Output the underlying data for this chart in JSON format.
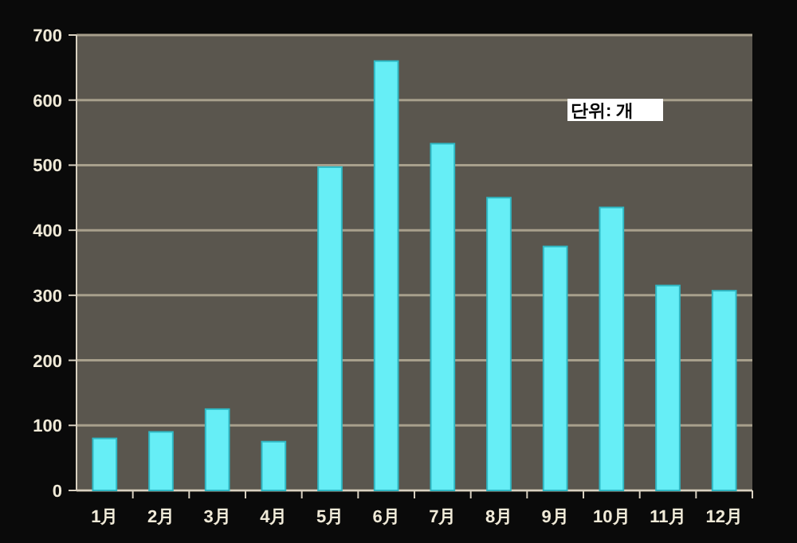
{
  "chart_data": {
    "type": "bar",
    "categories": [
      "1月",
      "2月",
      "3月",
      "4月",
      "5月",
      "6月",
      "7月",
      "8月",
      "9月",
      "10月",
      "11月",
      "12月"
    ],
    "values": [
      80,
      90,
      125,
      75,
      497,
      660,
      533,
      450,
      375,
      435,
      315,
      307
    ],
    "color": "#66eef6",
    "ylim": [
      0,
      700
    ],
    "yticks": [
      0,
      100,
      200,
      300,
      400,
      500,
      600,
      700
    ],
    "grid": "y",
    "annotations": [
      "단위: 개"
    ]
  }
}
